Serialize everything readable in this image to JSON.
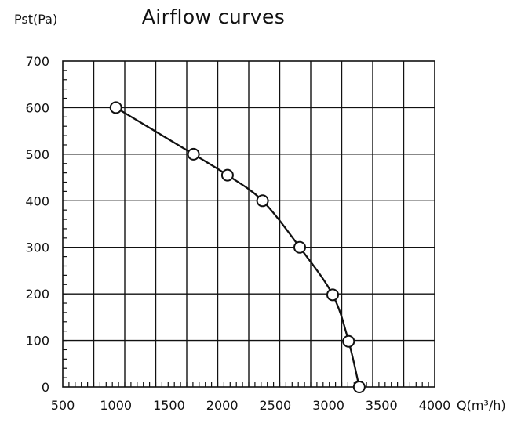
{
  "chart_data": {
    "type": "line",
    "title": "Airflow curves",
    "ylabel": "Pst(Pa)",
    "xlabel": "Q(m³/h)",
    "xlim": [
      500,
      4000
    ],
    "ylim": [
      0,
      700
    ],
    "x_ticks": [
      500,
      1000,
      1500,
      2000,
      2500,
      3000,
      3500,
      4000
    ],
    "y_ticks": [
      0,
      100,
      200,
      300,
      400,
      500,
      600,
      700
    ],
    "x_tick_labels": [
      "500",
      "1000",
      "1500",
      "2000",
      "2500",
      "3000",
      "3500",
      "4000"
    ],
    "y_tick_labels": [
      "0",
      "100",
      "200",
      "300",
      "400",
      "500",
      "600",
      "700"
    ],
    "grid": true,
    "series": [
      {
        "name": "Airflow curve",
        "x": [
          1000,
          1730,
          2050,
          2380,
          2730,
          3040,
          3190,
          3290
        ],
        "y": [
          600,
          500,
          455,
          400,
          300,
          198,
          98,
          0
        ]
      }
    ]
  }
}
